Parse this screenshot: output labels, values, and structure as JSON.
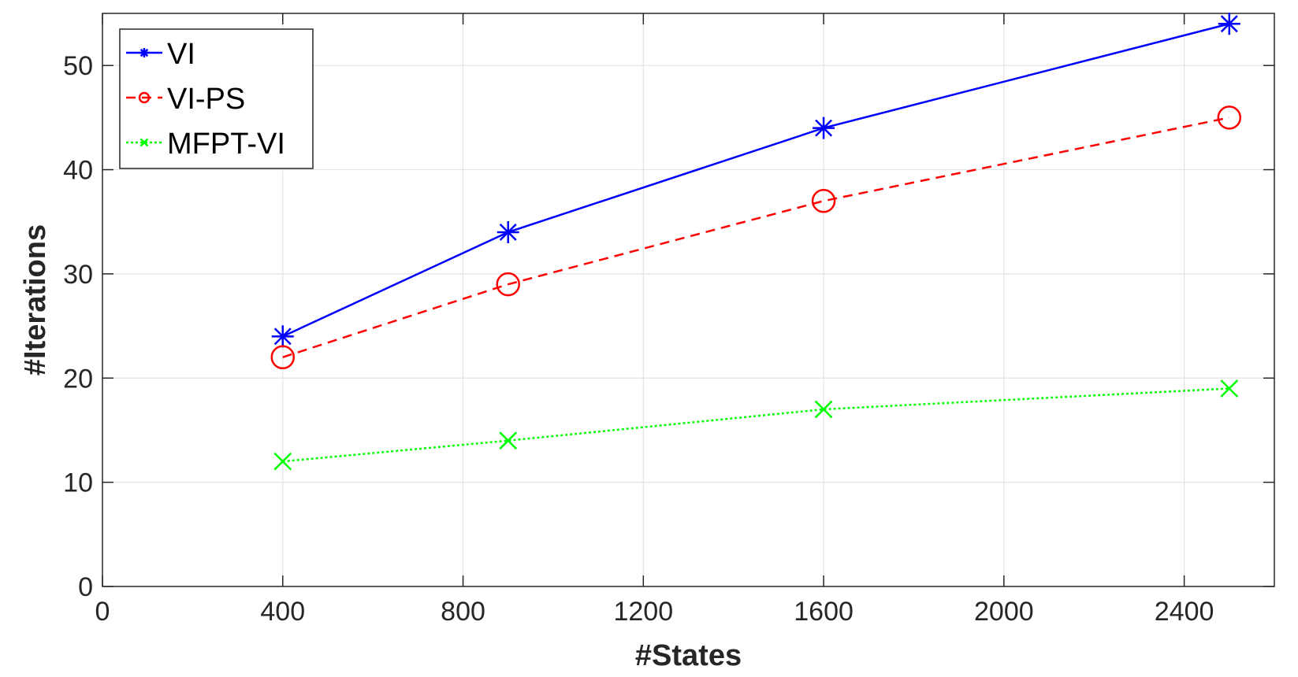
{
  "chart_data": {
    "type": "line",
    "title": "",
    "xlabel": "#States",
    "ylabel": "#Iterations",
    "xlim": [
      0,
      2600
    ],
    "ylim": [
      0,
      55
    ],
    "xticks": [
      0,
      400,
      800,
      1200,
      1600,
      2000,
      2400
    ],
    "yticks": [
      0,
      10,
      20,
      30,
      40,
      50
    ],
    "grid": true,
    "legend_position": "top-left",
    "x": [
      400,
      900,
      1600,
      2500
    ],
    "series": [
      {
        "name": "VI",
        "values": [
          24,
          34,
          44,
          54
        ],
        "color": "#0000ff",
        "dash": "solid",
        "marker": "asterisk"
      },
      {
        "name": "VI-PS",
        "values": [
          22,
          29,
          37,
          45
        ],
        "color": "#ff0000",
        "dash": "dashed",
        "marker": "circle"
      },
      {
        "name": "MFPT-VI",
        "values": [
          12,
          14,
          17,
          19
        ],
        "color": "#00ff00",
        "dash": "dotted",
        "marker": "cross"
      }
    ]
  }
}
